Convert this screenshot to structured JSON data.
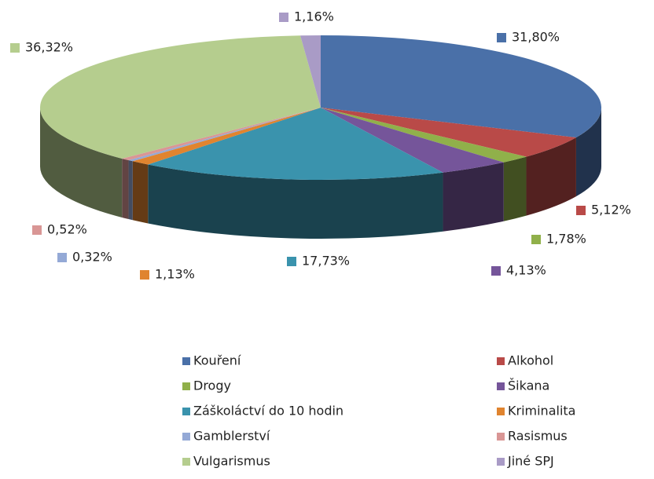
{
  "chart_data": {
    "type": "pie",
    "categories": [
      "Kouření",
      "Alkohol",
      "Drogy",
      "Šikana",
      "Záškoláctví do 10 hodin",
      "Kriminalita",
      "Gamblerství",
      "Rasismus",
      "Vulgarismus",
      "Jiné SPJ"
    ],
    "values": [
      31.8,
      5.12,
      1.78,
      4.13,
      17.73,
      1.13,
      0.32,
      0.52,
      36.32,
      1.16
    ],
    "value_labels": [
      "31,80%",
      "5,12%",
      "1,78%",
      "4,13%",
      "17,73%",
      "1,13%",
      "0,32%",
      "0,52%",
      "36,32%",
      "1,16%"
    ],
    "colors": [
      "#4a70a8",
      "#b94a48",
      "#90b04a",
      "#75559a",
      "#3a93ad",
      "#e0842f",
      "#94a9d6",
      "#d99695",
      "#b5cd8e",
      "#a99bc6"
    ]
  }
}
